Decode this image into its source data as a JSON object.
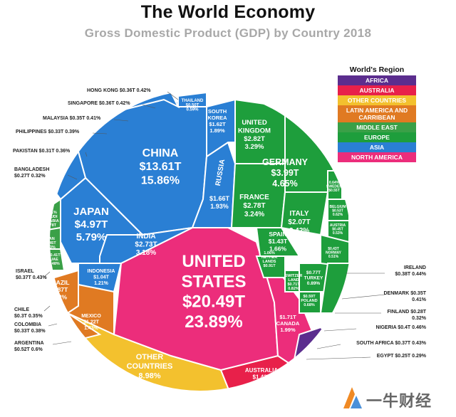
{
  "header": {
    "title": "The World Economy",
    "subtitle": "Gross Domestic Product (GDP) by Country 2018"
  },
  "legend": {
    "title": "World's Region",
    "items": [
      {
        "label": "AFRICA",
        "color": "#5b2d8e"
      },
      {
        "label": "AUSTRALIA",
        "color": "#e8204a"
      },
      {
        "label": "OTHER COUNTRIES",
        "color": "#f3c12e"
      },
      {
        "label": "LATIN AMERICA AND CARRIBEAN",
        "color": "#e07a22"
      },
      {
        "label": "MIDDLE EAST",
        "color": "#3aa047"
      },
      {
        "label": "EUROPE",
        "color": "#1e9e3c"
      },
      {
        "label": "ASIA",
        "color": "#2a7fd4"
      },
      {
        "label": "NORTH AMERICA",
        "color": "#ec2d7b"
      }
    ]
  },
  "watermark": {
    "text": "一牛财经"
  },
  "chart_data": {
    "type": "treemap",
    "title": "The World Economy",
    "subtitle": "Gross Domestic Product (GDP) by Country 2018",
    "countries": [
      {
        "name": "UNITED STATES",
        "value": "$20.49T",
        "share": "23.89%",
        "region": "NORTH AMERICA"
      },
      {
        "name": "CANADA",
        "value": "$1.71T",
        "share": "1.99%",
        "region": "NORTH AMERICA"
      },
      {
        "name": "CHINA",
        "value": "$13.61T",
        "share": "15.86%",
        "region": "ASIA"
      },
      {
        "name": "JAPAN",
        "value": "$4.97T",
        "share": "5.79%",
        "region": "ASIA"
      },
      {
        "name": "INDIA",
        "value": "$2.73T",
        "share": "3.18%",
        "region": "ASIA"
      },
      {
        "name": "RUSSIA",
        "value": "$1.66T",
        "share": "1.93%",
        "region": "ASIA"
      },
      {
        "name": "SOUTH KOREA",
        "value": "$1.62T",
        "share": "1.89%",
        "region": "ASIA"
      },
      {
        "name": "INDONESIA",
        "value": "$1.04T",
        "share": "1.21%",
        "region": "ASIA"
      },
      {
        "name": "THAILAND",
        "value": "$0.50T",
        "share": "0.59%",
        "region": "ASIA"
      },
      {
        "name": "HONG KONG",
        "value": "$0.36T",
        "share": "0.42%",
        "region": "ASIA"
      },
      {
        "name": "SINGAPORE",
        "value": "$0.36T",
        "share": "0.42%",
        "region": "ASIA"
      },
      {
        "name": "MALAYSIA",
        "value": "$0.35T",
        "share": "0.41%",
        "region": "ASIA"
      },
      {
        "name": "PHILIPPINES",
        "value": "$0.33T",
        "share": "0.39%",
        "region": "ASIA"
      },
      {
        "name": "PAKISTAN",
        "value": "$0.31T",
        "share": "0.36%",
        "region": "ASIA"
      },
      {
        "name": "BANGLADESH",
        "value": "$0.27T",
        "share": "0.32%",
        "region": "ASIA"
      },
      {
        "name": "SAUDI ARABIA",
        "value": "$0.78T",
        "share": "0.91%",
        "region": "MIDDLE EAST"
      },
      {
        "name": "IRAN",
        "value": "$0.45T",
        "share": "0.53%",
        "region": "MIDDLE EAST"
      },
      {
        "name": "UAE",
        "value": "$0.41T",
        "share": "0.48%",
        "region": "MIDDLE EAST"
      },
      {
        "name": "ISRAEL",
        "value": "$0.37T",
        "share": "0.43%",
        "region": "MIDDLE EAST"
      },
      {
        "name": "TURKEY",
        "value": "$0.77T",
        "share": "0.89%",
        "region": "MIDDLE EAST"
      },
      {
        "name": "GERMANY",
        "value": "$3.99T",
        "share": "4.65%",
        "region": "EUROPE"
      },
      {
        "name": "UNITED KINGDOM",
        "value": "$2.82T",
        "share": "3.29%",
        "region": "EUROPE"
      },
      {
        "name": "FRANCE",
        "value": "$2.78T",
        "share": "3.24%",
        "region": "EUROPE"
      },
      {
        "name": "ITALY",
        "value": "$2.07T",
        "share": "2.42%",
        "region": "EUROPE"
      },
      {
        "name": "SPAIN",
        "value": "$1.43T",
        "share": "1.66%",
        "region": "EUROPE"
      },
      {
        "name": "NETHERLANDS",
        "value": "$0.91T",
        "share": "1.06%",
        "region": "EUROPE"
      },
      {
        "name": "SWITZERLAND",
        "value": "$0.71T",
        "share": "0.82%",
        "region": "EUROPE"
      },
      {
        "name": "SWEDEN",
        "value": "$0.55T",
        "share": "0.64%",
        "region": "EUROPE"
      },
      {
        "name": "BELGIUM",
        "value": "$0.53T",
        "share": "0.62%",
        "region": "EUROPE"
      },
      {
        "name": "AUSTRIA",
        "value": "$0.45T",
        "share": "0.53%",
        "region": "EUROPE"
      },
      {
        "name": "NORWAY",
        "value": "$0.43T",
        "share": "0.51%",
        "region": "EUROPE"
      },
      {
        "name": "POLAND",
        "value": "$0.59T",
        "share": "0.68%",
        "region": "EUROPE"
      },
      {
        "name": "IRELAND",
        "value": "$0.38T",
        "share": "0.44%",
        "region": "EUROPE"
      },
      {
        "name": "DENMARK",
        "value": "$0.35T",
        "share": "0.41%",
        "region": "EUROPE"
      },
      {
        "name": "FINLAND",
        "value": "$0.28T",
        "share": "0.32%",
        "region": "EUROPE"
      },
      {
        "name": "BRAZIL",
        "value": "$1.87T",
        "share": "2.18%",
        "region": "LATIN AMERICA AND CARRIBEAN"
      },
      {
        "name": "MEXICO",
        "value": "$1.22T",
        "share": "1.43%",
        "region": "LATIN AMERICA AND CARRIBEAN"
      },
      {
        "name": "ARGENTINA",
        "value": "$0.52T",
        "share": "0.6%",
        "region": "LATIN AMERICA AND CARRIBEAN"
      },
      {
        "name": "CHILE",
        "value": "$0.3T",
        "share": "0.35%",
        "region": "LATIN AMERICA AND CARRIBEAN"
      },
      {
        "name": "COLOMBIA",
        "value": "$0.33T",
        "share": "0.38%",
        "region": "LATIN AMERICA AND CARRIBEAN"
      },
      {
        "name": "NIGERIA",
        "value": "$0.4T",
        "share": "0.46%",
        "region": "AFRICA"
      },
      {
        "name": "SOUTH AFRICA",
        "value": "$0.37T",
        "share": "0.43%",
        "region": "AFRICA"
      },
      {
        "name": "EGYPT",
        "value": "$0.25T",
        "share": "0.29%",
        "region": "AFRICA"
      },
      {
        "name": "AUSTRALIA",
        "value": "$1.43T",
        "share": "1.67%",
        "region": "AUSTRALIA"
      },
      {
        "name": "OTHER COUNTRIES",
        "value": "",
        "share": "8.98%",
        "region": "OTHER COUNTRIES"
      }
    ],
    "inner_labels": [
      {
        "key": "us",
        "lines": [
          "UNITED",
          "STATES",
          "$20.49T",
          "23.89%"
        ]
      },
      {
        "key": "china",
        "lines": [
          "CHINA",
          "$13.61T",
          "15.86%"
        ]
      },
      {
        "key": "japan",
        "lines": [
          "JAPAN",
          "$4.97T",
          "5.79%"
        ]
      },
      {
        "key": "india",
        "lines": [
          "INDIA",
          "$2.73T",
          "3.18%"
        ]
      },
      {
        "key": "germany",
        "lines": [
          "GERMANY",
          "$3.99T",
          "4.65%"
        ]
      },
      {
        "key": "uk",
        "lines": [
          "UNITED",
          "KINGDOM",
          "$2.82T",
          "3.29%"
        ]
      },
      {
        "key": "france",
        "lines": [
          "FRANCE",
          "$2.78T",
          "3.24%"
        ]
      },
      {
        "key": "italy",
        "lines": [
          "ITALY",
          "$2.07T",
          "2.42%"
        ]
      },
      {
        "key": "spain",
        "lines": [
          "SPAIN",
          "$1.43T",
          "1.66%"
        ]
      },
      {
        "key": "russia",
        "lines": [
          "$1.66T",
          "1.93%"
        ]
      },
      {
        "key": "russia-name",
        "lines": [
          "RUSSIA"
        ]
      },
      {
        "key": "korea",
        "lines": [
          "SOUTH",
          "KOREA",
          "$1.62T",
          "1.89%"
        ]
      },
      {
        "key": "brazil",
        "lines": [
          "BRAZIL",
          "$1.87T",
          "2.18%"
        ]
      },
      {
        "key": "mexico",
        "lines": [
          "MEXICO",
          "$1.22T",
          "1.43%"
        ]
      },
      {
        "key": "indonesia",
        "lines": [
          "INDONESIA",
          "$1.04T",
          "1.21%"
        ]
      },
      {
        "key": "canada",
        "lines": [
          "$1.71T",
          "CANADA",
          "1.99%"
        ]
      },
      {
        "key": "other",
        "lines": [
          "OTHER",
          "COUNTRIES",
          "8.98%"
        ]
      },
      {
        "key": "australia",
        "lines": [
          "AUSTRALIA",
          "$1.43T",
          "1.67%"
        ]
      },
      {
        "key": "thailand",
        "lines": [
          "THAILAND",
          "$0.50T",
          "0.59%"
        ]
      },
      {
        "key": "saudi",
        "lines": [
          "0.91%",
          "SAUDI",
          "ARABIA",
          "0.78T"
        ]
      },
      {
        "key": "iran",
        "lines": [
          "IRAN",
          "$0.45T",
          "0.53%"
        ]
      },
      {
        "key": "uae",
        "lines": [
          "$0.41T",
          "UAE",
          "0.48%"
        ]
      },
      {
        "key": "netherlands",
        "lines": [
          "1.06%",
          "NETHER",
          "LANDS",
          "$0.91T"
        ]
      },
      {
        "key": "switzerland",
        "lines": [
          "SWITZER",
          "LAND",
          "$0.71T",
          "0.82%"
        ]
      },
      {
        "key": "poland",
        "lines": [
          "$0.59T",
          "POLAND",
          "0.68%"
        ]
      },
      {
        "key": "turkey",
        "lines": [
          "$0.77T",
          "TURKEY",
          "0.89%"
        ]
      },
      {
        "key": "sweden",
        "lines": [
          "0.64%",
          "SWEDEN",
          "$0.55T"
        ]
      },
      {
        "key": "belgium",
        "lines": [
          "BELGIUM",
          "$0.53T",
          "0.62%"
        ]
      },
      {
        "key": "austria",
        "lines": [
          "AUSTRIA",
          "$0.45T",
          "0.53%"
        ]
      },
      {
        "key": "norway",
        "lines": [
          "$0.43T",
          "NORWAY",
          "0.51%"
        ]
      }
    ],
    "callouts": [
      {
        "key": "hongkong",
        "lines": [
          "HONG KONG $0.36T 0.42%"
        ]
      },
      {
        "key": "singapore",
        "lines": [
          "SINGAPORE $0.36T 0.42%"
        ]
      },
      {
        "key": "malaysia",
        "lines": [
          "MALAYSIA $0.35T 0.41%"
        ]
      },
      {
        "key": "philippines",
        "lines": [
          "PHILIPPINES $0.33T 0.39%"
        ]
      },
      {
        "key": "pakistan",
        "lines": [
          "PAKISTAN $0.31T 0.36%"
        ]
      },
      {
        "key": "bangladesh",
        "lines": [
          "BANGLADESH",
          "$0.27T 0.32%"
        ]
      },
      {
        "key": "israel",
        "lines": [
          "ISRAEL",
          "$0.37T 0.43%"
        ]
      },
      {
        "key": "chile",
        "lines": [
          "CHILE",
          "$0.3T 0.35%"
        ]
      },
      {
        "key": "colombia",
        "lines": [
          "COLOMBIA",
          "$0.33T 0.38%"
        ]
      },
      {
        "key": "argentina",
        "lines": [
          "ARGENTINA",
          "$0.52T 0.6%"
        ]
      },
      {
        "key": "ireland",
        "lines": [
          "IRELAND",
          "$0.38T 0.44%"
        ]
      },
      {
        "key": "denmark",
        "lines": [
          "DENMARK $0.35T",
          "0.41%"
        ]
      },
      {
        "key": "finland",
        "lines": [
          "FINLAND $0.28T",
          "0.32%"
        ]
      },
      {
        "key": "nigeria",
        "lines": [
          "NIGERIA $0.4T 0.46%"
        ]
      },
      {
        "key": "southafrica",
        "lines": [
          "SOUTH AFRICA $0.37T 0.43%"
        ]
      },
      {
        "key": "egypt",
        "lines": [
          "EGYPT $0.25T 0.29%"
        ]
      }
    ]
  }
}
